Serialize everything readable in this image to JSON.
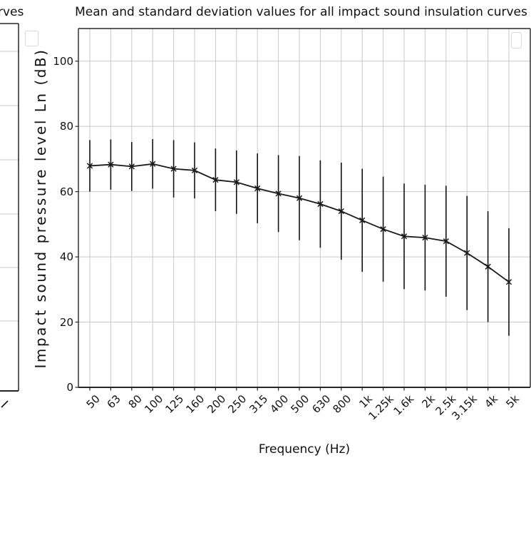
{
  "left_panel": {
    "title_fragment": "rves",
    "legend_empty": true
  },
  "chart_data": {
    "type": "line",
    "title": "Mean and standard deviation values for all impact sound insulation curves",
    "xlabel": "Frequency (Hz)",
    "ylabel": "Impact sound pressure level Ln (dB)",
    "categories": [
      "50",
      "63",
      "80",
      "100",
      "125",
      "160",
      "200",
      "250",
      "315",
      "400",
      "500",
      "630",
      "800",
      "1k",
      "1.25k",
      "1.6k",
      "2k",
      "2.5k",
      "3.15k",
      "4k",
      "5k"
    ],
    "series": [
      {
        "name": "mean",
        "values": [
          67.9,
          68.3,
          67.7,
          68.5,
          67.0,
          66.5,
          63.6,
          62.9,
          61.0,
          59.4,
          58.0,
          56.2,
          54.0,
          51.2,
          48.5,
          46.3,
          45.9,
          44.8,
          41.2,
          37.0,
          32.3
        ]
      },
      {
        "name": "std",
        "values": [
          7.9,
          7.7,
          7.5,
          7.6,
          8.8,
          8.6,
          9.6,
          9.7,
          10.7,
          11.8,
          12.9,
          13.4,
          14.9,
          15.8,
          16.1,
          16.2,
          16.2,
          17.0,
          17.5,
          17.0,
          16.5
        ]
      }
    ],
    "errorbars": true,
    "marker": "x",
    "grid": true,
    "ylim": [
      0,
      110
    ],
    "yticks": [
      0,
      20,
      40,
      60,
      80,
      100
    ],
    "legend_position": "upper-right-empty",
    "colors": {
      "line": "#1a1a1a",
      "errorbar": "#111111",
      "grid": "#c9c9c9",
      "spine": "#262626",
      "text": "#111111",
      "legend_border": "#d9d9d9",
      "background": "#ffffff"
    }
  }
}
